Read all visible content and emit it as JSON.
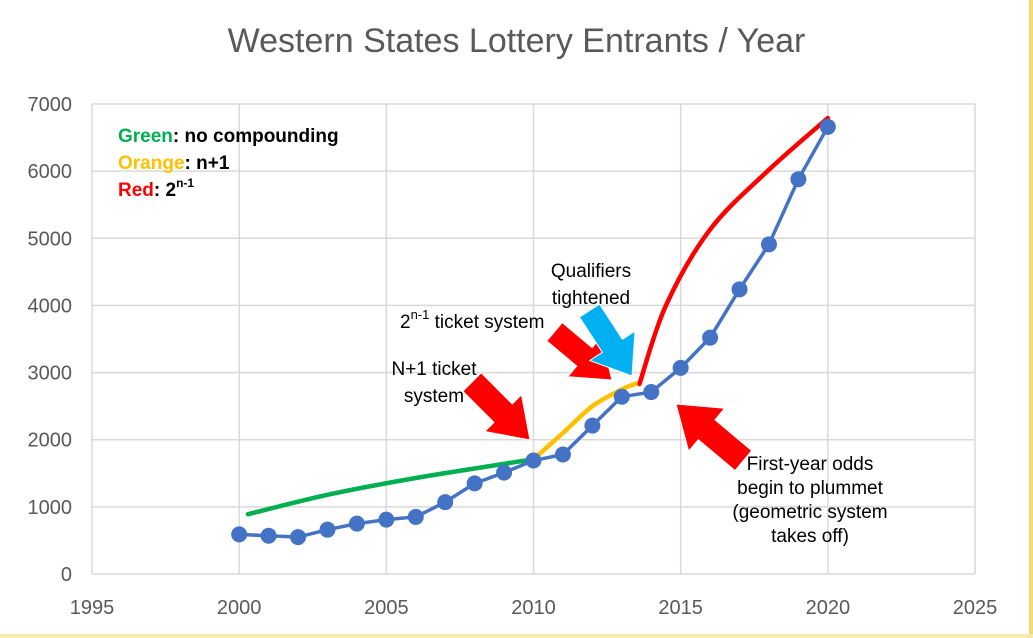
{
  "chart_data": {
    "type": "line",
    "title": "Western States Lottery Entrants / Year",
    "xlabel": "",
    "ylabel": "",
    "xlim": [
      1995,
      2025
    ],
    "ylim": [
      0,
      7000
    ],
    "x_ticks": [
      "1995",
      "2000",
      "2005",
      "2010",
      "2015",
      "2020",
      "2025"
    ],
    "y_ticks": [
      "0",
      "1000",
      "2000",
      "3000",
      "4000",
      "5000",
      "6000",
      "7000"
    ],
    "grid": true,
    "series": [
      {
        "x": [
          2000,
          2001,
          2002,
          2003,
          2004,
          2005,
          2006,
          2007,
          2008,
          2009,
          2010,
          2011,
          2012,
          2013,
          2014,
          2015,
          2016,
          2017,
          2018,
          2019,
          2020
        ],
        "values": [
          590,
          570,
          550,
          660,
          750,
          810,
          850,
          1070,
          1350,
          1510,
          1690,
          1780,
          2210,
          2640,
          2710,
          3070,
          3520,
          4240,
          4910,
          5880,
          6660
        ],
        "color": "#4472c4"
      }
    ],
    "trend_curves": [
      {
        "color": "#00b050",
        "points": [
          [
            2000.3,
            890
          ],
          [
            2003,
            1180
          ],
          [
            2006,
            1430
          ],
          [
            2009,
            1640
          ],
          [
            2010,
            1710
          ]
        ]
      },
      {
        "color": "#ffc000",
        "points": [
          [
            2010,
            1710
          ],
          [
            2011,
            2100
          ],
          [
            2012,
            2500
          ],
          [
            2013,
            2750
          ],
          [
            2013.5,
            2840
          ]
        ]
      },
      {
        "color": "#ff0000",
        "points": [
          [
            2013.6,
            2830
          ],
          [
            2014.5,
            4000
          ],
          [
            2016,
            5130
          ],
          [
            2018,
            6020
          ],
          [
            2020,
            6790
          ]
        ]
      }
    ],
    "legend": {
      "position": "top-left",
      "items": [
        {
          "key": "Green",
          "rest": ": no compounding",
          "color": "#00b050"
        },
        {
          "key": "Orange",
          "rest": ": n+1",
          "color": "#ffc000"
        },
        {
          "key": "Red",
          "rest": ": 2",
          "sup": "n-1",
          "color": "#ff0000"
        }
      ]
    },
    "annotations": {
      "n1_system": {
        "lines": [
          "N+1 ticket",
          "system"
        ]
      },
      "pow_system": {
        "prefix": "2",
        "sup": "n-1",
        "suffix": " ticket system"
      },
      "qualifiers": {
        "lines": [
          "Qualifiers",
          "tightened"
        ]
      },
      "odds": {
        "lines": [
          "First-year odds",
          "begin to plummet",
          "(geometric system",
          "takes off)"
        ]
      }
    },
    "arrow_colors": {
      "red": "#ff0000",
      "blue": "#00b0f0"
    }
  }
}
